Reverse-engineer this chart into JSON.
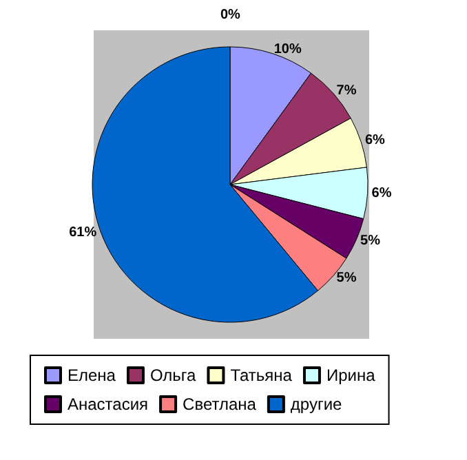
{
  "chart_data": {
    "type": "pie",
    "categories": [
      "Елена",
      "Ольга",
      "Татьяна",
      "Ирина",
      "Анастасия",
      "Светлана",
      "другие"
    ],
    "values": [
      10,
      7,
      6,
      6,
      5,
      5,
      61
    ],
    "value_labels": [
      "10%",
      "7%",
      "6%",
      "6%",
      "5%",
      "5%",
      "61%"
    ],
    "colors": [
      "#9999ff",
      "#993366",
      "#ffffcc",
      "#ccffff",
      "#660066",
      "#ff8080",
      "#0066cc"
    ],
    "annotations": [
      "0%"
    ],
    "legend": "bottom"
  }
}
